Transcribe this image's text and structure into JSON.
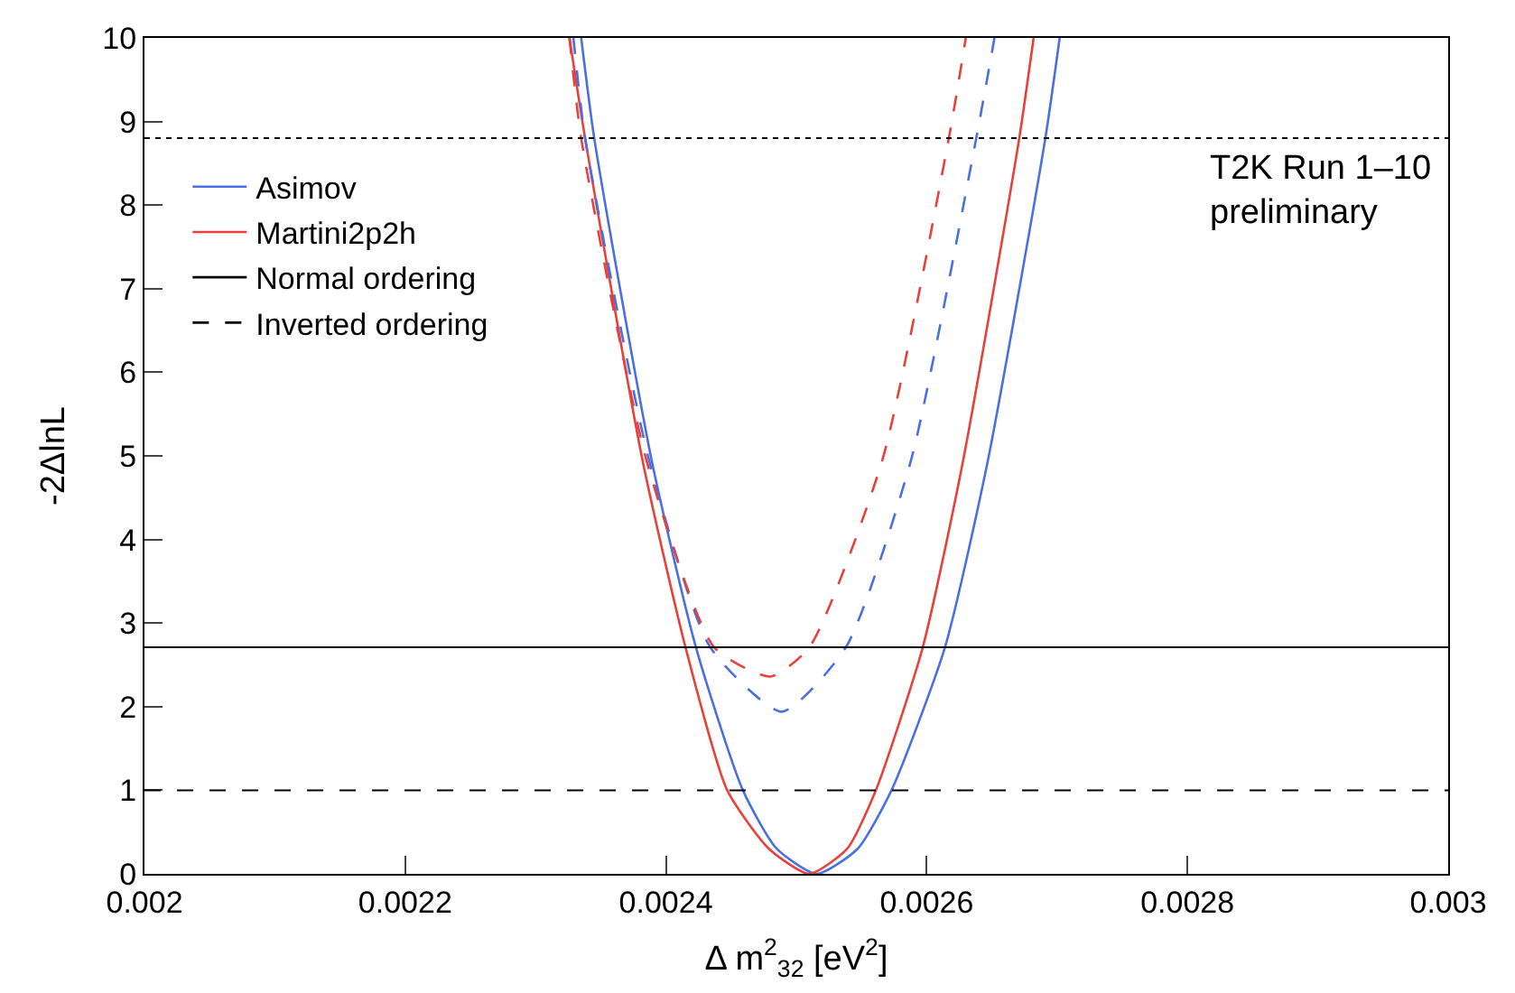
{
  "chart_data": {
    "type": "line",
    "xlabel": "Δ m$^{2}$$_{32}$ [eV$^{2}$]",
    "ylabel": "-2ΔlnL",
    "xlim": [
      0.002,
      0.003
    ],
    "xticks": [
      0.002,
      0.0022,
      0.0024,
      0.0026,
      0.0028,
      0.003
    ],
    "ylim": [
      0,
      10
    ],
    "yticks": [
      0,
      1,
      2,
      3,
      4,
      5,
      6,
      7,
      8,
      9,
      10
    ],
    "legend": "top left",
    "marker": "none",
    "series": [
      {
        "name": "Asimov",
        "color": "#4a6fe3",
        "line_style": "solid",
        "x": [
          0.002335,
          0.002345,
          0.002389,
          0.002423,
          0.002459,
          0.002485,
          0.0025157,
          0.002547,
          0.002573,
          0.002614,
          0.002647,
          0.002691,
          0.002702
        ],
        "values": [
          10,
          8.8,
          4.95,
          2.71,
          1,
          0.3,
          0,
          0.3,
          1,
          2.71,
          4.95,
          8.8,
          10
        ]
      },
      {
        "name": "Martini2p2h",
        "color": "#e8413c",
        "line_style": "solid",
        "x": [
          0.002326,
          0.002338,
          0.002382,
          0.002415,
          0.002447,
          0.002479,
          0.00251,
          0.002539,
          0.002561,
          0.002597,
          0.002628,
          0.002671,
          0.002682
        ],
        "values": [
          10,
          8.8,
          4.95,
          2.71,
          1,
          0.3,
          0,
          0.3,
          1,
          2.71,
          4.95,
          8.8,
          10
        ]
      },
      {
        "color": "#4a6fe3",
        "line_style": "dashed",
        "x": [
          0.002329,
          0.002338,
          0.002387,
          0.002434,
          0.002489,
          0.002538,
          0.002588,
          0.002638,
          0.002652
        ],
        "values": [
          10,
          8.8,
          4.95,
          2.71,
          1.94,
          2.71,
          4.95,
          8.8,
          10
        ]
      },
      {
        "color": "#e8413c",
        "line_style": "dashed",
        "x": [
          0.002326,
          0.002335,
          0.002385,
          0.002437,
          0.00248,
          0.00251,
          0.002566,
          0.002617,
          0.00263
        ],
        "values": [
          10,
          8.8,
          4.95,
          2.71,
          2.36,
          2.71,
          4.95,
          8.8,
          10
        ]
      },
      {
        "name": "Normal ordering",
        "color": "#000000",
        "line_style": "solid"
      },
      {
        "name": "Inverted ordering",
        "color": "#000000",
        "line_style": "dashed"
      }
    ],
    "ref_lines": [
      {
        "axis": "y",
        "value": 1,
        "color": "#000000",
        "line_style": "dashed"
      },
      {
        "axis": "y",
        "value": 2.71,
        "color": "#000000",
        "line_style": "solid"
      },
      {
        "axis": "y",
        "value": 8.8,
        "color": "#000000",
        "line_style": "dotted"
      }
    ],
    "annotations": [
      "T2K Run 1–10\npreliminary"
    ]
  }
}
